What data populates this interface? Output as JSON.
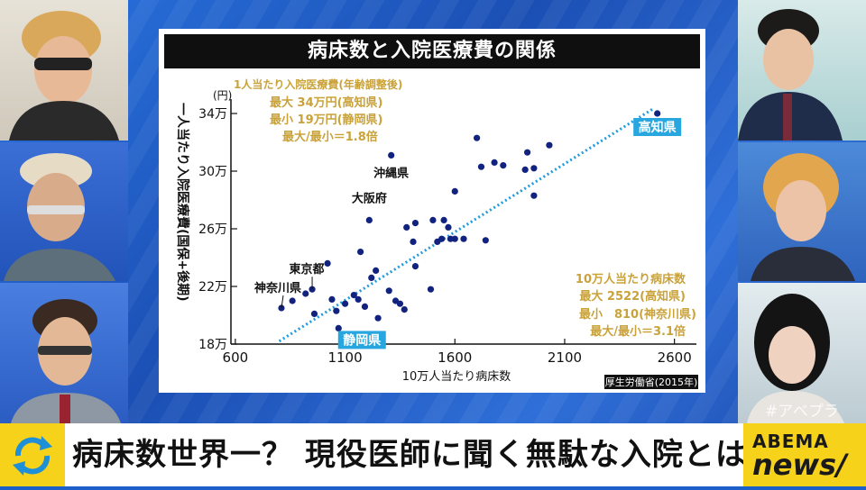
{
  "chart": {
    "title": "病床数と入院医療費の関係",
    "source": "厚生労働省(2015年)",
    "y_unit": "(円)",
    "y_label": "一人当たり入院医療費(国保+後期)",
    "x_label": "10万人当たり病床数"
  },
  "annotations": {
    "cost_box": [
      "1人当たり入院医療費(年齢調整後)",
      "最大 34万円(高知県)",
      "最小 19万円(静岡県)",
      "最大/最小＝1.8倍"
    ],
    "bed_box": [
      "10万人当たり病床数",
      "最大 2522(高知県)",
      "最小　810(神奈川県)",
      "最大/最小＝3.1倍"
    ]
  },
  "chart_data": {
    "type": "scatter",
    "title": "病床数と入院医療費の関係",
    "xlabel": "10万人当たり病床数",
    "ylabel": "一人当たり入院医療費(国保+後期)",
    "xlim": [
      580,
      2700
    ],
    "ylim": [
      18,
      35
    ],
    "x_ticks": [
      600,
      1100,
      1600,
      2100,
      2600
    ],
    "x_tick_labels": [
      "600",
      "1100",
      "1600",
      "2100",
      "2600"
    ],
    "y_ticks": [
      18,
      22,
      26,
      30,
      34
    ],
    "y_tick_labels": [
      "18万",
      "22万",
      "26万",
      "30万",
      "34万"
    ],
    "grid": false,
    "trend_line": {
      "x": [
        800,
        2500
      ],
      "y": [
        18.2,
        34.3
      ]
    },
    "points": [
      {
        "x": 810,
        "y": 20.5,
        "label": "神奈川県"
      },
      {
        "x": 860,
        "y": 21.0
      },
      {
        "x": 920,
        "y": 21.5
      },
      {
        "x": 950,
        "y": 21.8,
        "label": "東京都"
      },
      {
        "x": 960,
        "y": 20.1
      },
      {
        "x": 1020,
        "y": 23.6
      },
      {
        "x": 1040,
        "y": 21.1
      },
      {
        "x": 1060,
        "y": 20.3
      },
      {
        "x": 1070,
        "y": 19.1,
        "label": "静岡県"
      },
      {
        "x": 1100,
        "y": 20.8
      },
      {
        "x": 1140,
        "y": 21.4
      },
      {
        "x": 1160,
        "y": 21.1
      },
      {
        "x": 1170,
        "y": 24.4
      },
      {
        "x": 1190,
        "y": 20.6
      },
      {
        "x": 1210,
        "y": 26.6,
        "label": "大阪府"
      },
      {
        "x": 1220,
        "y": 22.6
      },
      {
        "x": 1240,
        "y": 23.1
      },
      {
        "x": 1250,
        "y": 19.8
      },
      {
        "x": 1300,
        "y": 21.7
      },
      {
        "x": 1310,
        "y": 31.1,
        "label": "沖縄県"
      },
      {
        "x": 1330,
        "y": 21.0
      },
      {
        "x": 1350,
        "y": 20.8
      },
      {
        "x": 1370,
        "y": 20.4
      },
      {
        "x": 1380,
        "y": 26.1
      },
      {
        "x": 1410,
        "y": 25.1
      },
      {
        "x": 1420,
        "y": 26.4
      },
      {
        "x": 1420,
        "y": 23.4
      },
      {
        "x": 1490,
        "y": 21.8
      },
      {
        "x": 1500,
        "y": 26.6
      },
      {
        "x": 1520,
        "y": 25.1
      },
      {
        "x": 1540,
        "y": 25.3
      },
      {
        "x": 1550,
        "y": 26.6
      },
      {
        "x": 1570,
        "y": 26.1
      },
      {
        "x": 1580,
        "y": 25.3
      },
      {
        "x": 1600,
        "y": 25.3
      },
      {
        "x": 1600,
        "y": 28.6
      },
      {
        "x": 1640,
        "y": 25.3
      },
      {
        "x": 1700,
        "y": 32.3
      },
      {
        "x": 1720,
        "y": 30.3
      },
      {
        "x": 1740,
        "y": 25.2
      },
      {
        "x": 1780,
        "y": 30.6
      },
      {
        "x": 1820,
        "y": 30.4
      },
      {
        "x": 1920,
        "y": 30.1
      },
      {
        "x": 1930,
        "y": 31.3
      },
      {
        "x": 1960,
        "y": 30.2
      },
      {
        "x": 1960,
        "y": 28.3
      },
      {
        "x": 2030,
        "y": 31.8
      },
      {
        "x": 2522,
        "y": 34.0,
        "label": "高知県"
      }
    ]
  },
  "ticker": {
    "text": "病床数世界一？ 現役医師に聞く無駄な入院とは",
    "logo_top": "ABEMA",
    "logo_bottom": "news/"
  },
  "watermark": "#アベプラ",
  "colors": {
    "point": "#12227f",
    "trend": "#1f9be0",
    "annotation": "#c9a23a",
    "highlight": "#27a6e0",
    "ticker_accent": "#f6d21a"
  }
}
